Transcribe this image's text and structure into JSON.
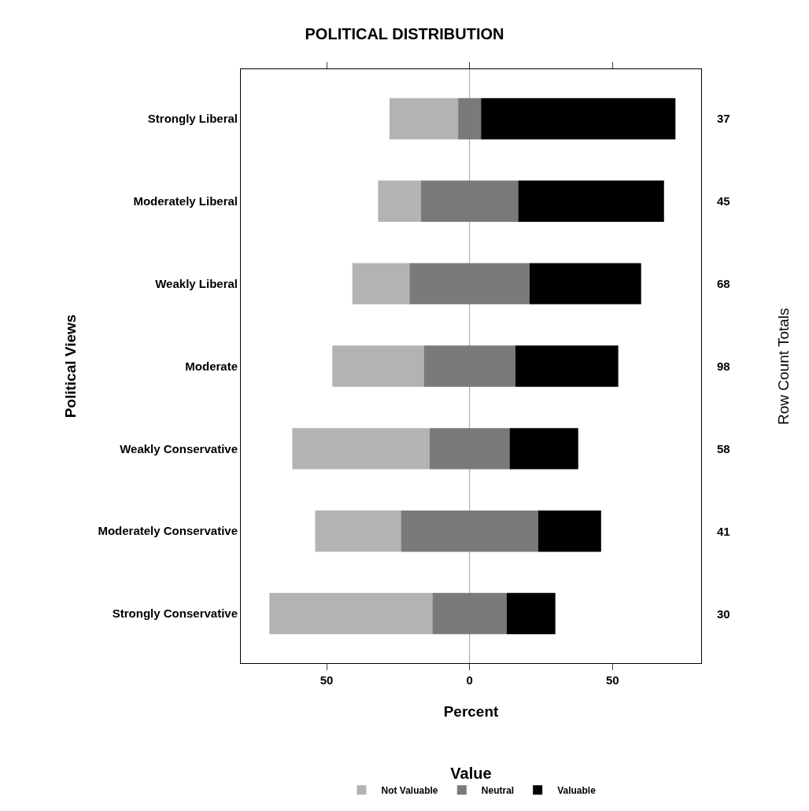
{
  "chart_data": {
    "type": "bar",
    "orientation": "horizontal",
    "title": "POLITICAL DISTRIBUTION",
    "xlabel": "Percent",
    "ylabel": "Political Views",
    "y2label": "Row Count Totals",
    "legend_title": "Value",
    "categories": [
      "Strongly Liberal",
      "Moderately Liberal",
      "Weakly Liberal",
      "Moderate",
      "Weakly Conservative",
      "Moderately Conservative",
      "Strongly Conservative"
    ],
    "series": [
      {
        "name": "Not Valuable",
        "color": "#b3b3b3",
        "base": [
          -28,
          -32,
          -41,
          -48,
          -62,
          -54,
          -70
        ],
        "values": [
          24,
          15,
          20,
          32,
          48,
          30,
          57
        ]
      },
      {
        "name": "Neutral",
        "color": "#7a7a7a",
        "base": [
          -4,
          -17,
          -21,
          -16,
          -14,
          -24,
          -13
        ],
        "values": [
          8,
          34,
          42,
          32,
          28,
          48,
          26
        ]
      },
      {
        "name": "Valuable",
        "color": "#000000",
        "base": [
          4,
          17,
          21,
          16,
          14,
          24,
          13
        ],
        "values": [
          68,
          51,
          39,
          36,
          24,
          22,
          17
        ]
      }
    ],
    "xlim": [
      -80,
      81
    ],
    "xticks": [
      {
        "value": -50,
        "label": "50"
      },
      0,
      50
    ],
    "ref_lines": [
      {
        "axis": "x",
        "value": 0,
        "color": "#a0a0a0"
      }
    ],
    "annotations": [
      "37",
      "45",
      "68",
      "98",
      "58",
      "41",
      "30"
    ],
    "grid": false,
    "legend": "bottom"
  }
}
